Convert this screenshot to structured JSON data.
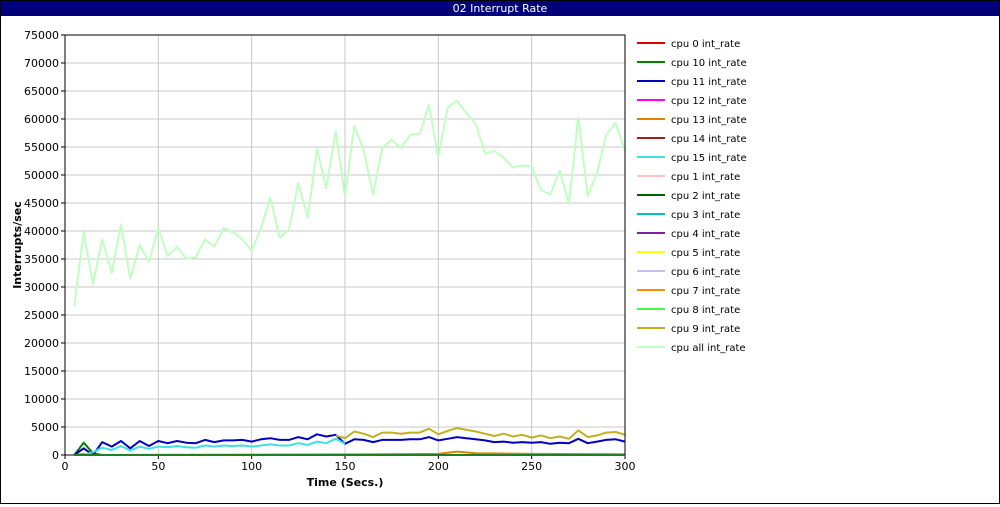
{
  "window": {
    "title": "02 Interrupt Rate"
  },
  "chart_data": {
    "type": "line",
    "title": "02 Interrupt Rate",
    "xlabel": "Time (Secs.)",
    "ylabel": "Interrupts/sec",
    "xlim": [
      0,
      300
    ],
    "ylim": [
      0,
      75000
    ],
    "x_ticks": [
      0,
      50,
      100,
      150,
      200,
      250,
      300
    ],
    "y_ticks": [
      0,
      5000,
      10000,
      15000,
      20000,
      25000,
      30000,
      35000,
      40000,
      45000,
      50000,
      55000,
      60000,
      65000,
      70000,
      75000
    ],
    "grid": true,
    "legend_position": "right",
    "series": [
      {
        "name": "cpu 0 int_rate",
        "color": "#e00000",
        "points": [
          [
            5,
            0
          ],
          [
            10,
            100
          ],
          [
            15,
            0
          ],
          [
            20,
            0
          ],
          [
            25,
            0
          ],
          [
            50,
            0
          ],
          [
            100,
            0
          ],
          [
            150,
            0
          ],
          [
            200,
            0
          ],
          [
            250,
            0
          ],
          [
            300,
            0
          ]
        ]
      },
      {
        "name": "cpu 10 int_rate",
        "color": "#008000",
        "points": [
          [
            5,
            0
          ],
          [
            10,
            2200
          ],
          [
            15,
            300
          ],
          [
            20,
            0
          ],
          [
            25,
            0
          ],
          [
            300,
            0
          ]
        ]
      },
      {
        "name": "cpu 11 int_rate",
        "color": "#0000c0",
        "points": [
          [
            5,
            0
          ],
          [
            10,
            1200
          ],
          [
            15,
            0
          ],
          [
            20,
            2300
          ],
          [
            25,
            1500
          ],
          [
            30,
            2500
          ],
          [
            35,
            1200
          ],
          [
            40,
            2500
          ],
          [
            45,
            1600
          ],
          [
            50,
            2500
          ],
          [
            55,
            2100
          ],
          [
            60,
            2500
          ],
          [
            65,
            2200
          ],
          [
            70,
            2100
          ],
          [
            75,
            2700
          ],
          [
            80,
            2300
          ],
          [
            85,
            2600
          ],
          [
            90,
            2600
          ],
          [
            95,
            2700
          ],
          [
            100,
            2400
          ],
          [
            105,
            2800
          ],
          [
            110,
            3000
          ],
          [
            115,
            2700
          ],
          [
            120,
            2700
          ],
          [
            125,
            3200
          ],
          [
            130,
            2800
          ],
          [
            135,
            3700
          ],
          [
            140,
            3300
          ],
          [
            145,
            3600
          ],
          [
            150,
            2000
          ],
          [
            155,
            2800
          ],
          [
            160,
            2700
          ],
          [
            165,
            2300
          ],
          [
            170,
            2700
          ],
          [
            175,
            2700
          ],
          [
            180,
            2700
          ],
          [
            185,
            2800
          ],
          [
            190,
            2800
          ],
          [
            195,
            3200
          ],
          [
            200,
            2600
          ],
          [
            205,
            2900
          ],
          [
            210,
            3200
          ],
          [
            215,
            3000
          ],
          [
            220,
            2800
          ],
          [
            225,
            2600
          ],
          [
            230,
            2300
          ],
          [
            235,
            2400
          ],
          [
            240,
            2200
          ],
          [
            245,
            2300
          ],
          [
            250,
            2200
          ],
          [
            255,
            2300
          ],
          [
            260,
            2000
          ],
          [
            265,
            2200
          ],
          [
            270,
            2100
          ],
          [
            275,
            2900
          ],
          [
            280,
            2100
          ],
          [
            285,
            2400
          ],
          [
            290,
            2700
          ],
          [
            295,
            2800
          ],
          [
            300,
            2400
          ]
        ]
      },
      {
        "name": "cpu 12 int_rate",
        "color": "#ff00ff",
        "points": [
          [
            5,
            0
          ],
          [
            300,
            0
          ]
        ]
      },
      {
        "name": "cpu 13 int_rate",
        "color": "#e08000",
        "points": [
          [
            5,
            0
          ],
          [
            150,
            100
          ],
          [
            200,
            200
          ],
          [
            210,
            600
          ],
          [
            220,
            300
          ],
          [
            250,
            200
          ],
          [
            300,
            150
          ]
        ]
      },
      {
        "name": "cpu 14 int_rate",
        "color": "#a02020",
        "points": [
          [
            5,
            0
          ],
          [
            300,
            0
          ]
        ]
      },
      {
        "name": "cpu 15 int_rate",
        "color": "#40e0e0",
        "points": [
          [
            5,
            0
          ],
          [
            10,
            0
          ],
          [
            15,
            500
          ],
          [
            20,
            1300
          ],
          [
            25,
            900
          ],
          [
            30,
            1600
          ],
          [
            35,
            800
          ],
          [
            40,
            1500
          ],
          [
            45,
            1100
          ],
          [
            50,
            1500
          ],
          [
            55,
            1400
          ],
          [
            60,
            1600
          ],
          [
            65,
            1400
          ],
          [
            70,
            1300
          ],
          [
            75,
            1700
          ],
          [
            80,
            1500
          ],
          [
            85,
            1700
          ],
          [
            90,
            1600
          ],
          [
            95,
            1700
          ],
          [
            100,
            1500
          ],
          [
            105,
            1700
          ],
          [
            110,
            1900
          ],
          [
            115,
            1700
          ],
          [
            120,
            1700
          ],
          [
            125,
            2100
          ],
          [
            130,
            1800
          ],
          [
            135,
            2400
          ],
          [
            140,
            2100
          ],
          [
            145,
            2900
          ],
          [
            150,
            2000
          ]
        ]
      },
      {
        "name": "cpu 1 int_rate",
        "color": "#ffc0c0",
        "points": [
          [
            5,
            0
          ],
          [
            300,
            0
          ]
        ]
      },
      {
        "name": "cpu 2 int_rate",
        "color": "#006000",
        "points": [
          [
            5,
            0
          ],
          [
            300,
            0
          ]
        ]
      },
      {
        "name": "cpu 3 int_rate",
        "color": "#00c0c0",
        "points": [
          [
            5,
            0
          ],
          [
            300,
            0
          ]
        ]
      },
      {
        "name": "cpu 4 int_rate",
        "color": "#8020a0",
        "points": [
          [
            5,
            0
          ],
          [
            300,
            0
          ]
        ]
      },
      {
        "name": "cpu 5 int_rate",
        "color": "#ffff00",
        "points": [
          [
            5,
            0
          ],
          [
            300,
            0
          ]
        ]
      },
      {
        "name": "cpu 6 int_rate",
        "color": "#c0c0ff",
        "points": [
          [
            5,
            0
          ],
          [
            300,
            0
          ]
        ]
      },
      {
        "name": "cpu 7 int_rate",
        "color": "#ff8c00",
        "points": [
          [
            5,
            0
          ],
          [
            300,
            0
          ]
        ]
      },
      {
        "name": "cpu 8 int_rate",
        "color": "#40ff40",
        "points": [
          [
            5,
            0
          ],
          [
            300,
            0
          ]
        ]
      },
      {
        "name": "cpu 9 int_rate",
        "color": "#c0b020",
        "points": [
          [
            145,
            3500
          ],
          [
            150,
            3000
          ],
          [
            155,
            4200
          ],
          [
            160,
            3800
          ],
          [
            165,
            3200
          ],
          [
            170,
            4000
          ],
          [
            175,
            4000
          ],
          [
            180,
            3800
          ],
          [
            185,
            4000
          ],
          [
            190,
            4000
          ],
          [
            195,
            4700
          ],
          [
            200,
            3700
          ],
          [
            205,
            4300
          ],
          [
            210,
            4800
          ],
          [
            215,
            4500
          ],
          [
            220,
            4200
          ],
          [
            225,
            3800
          ],
          [
            230,
            3400
          ],
          [
            235,
            3800
          ],
          [
            240,
            3300
          ],
          [
            245,
            3600
          ],
          [
            250,
            3100
          ],
          [
            255,
            3500
          ],
          [
            260,
            3000
          ],
          [
            265,
            3300
          ],
          [
            270,
            2900
          ],
          [
            275,
            4400
          ],
          [
            280,
            3200
          ],
          [
            285,
            3500
          ],
          [
            290,
            4000
          ],
          [
            295,
            4100
          ],
          [
            300,
            3600
          ]
        ]
      },
      {
        "name": "cpu all int_rate",
        "color": "#c0ffc0",
        "points": [
          [
            5,
            26500
          ],
          [
            10,
            39800
          ],
          [
            15,
            30500
          ],
          [
            20,
            38500
          ],
          [
            25,
            32500
          ],
          [
            30,
            41200
          ],
          [
            35,
            31500
          ],
          [
            40,
            37500
          ],
          [
            45,
            34500
          ],
          [
            50,
            40500
          ],
          [
            55,
            35500
          ],
          [
            60,
            37200
          ],
          [
            65,
            35000
          ],
          [
            70,
            35300
          ],
          [
            75,
            38500
          ],
          [
            80,
            37200
          ],
          [
            85,
            40500
          ],
          [
            90,
            39800
          ],
          [
            95,
            38500
          ],
          [
            100,
            36500
          ],
          [
            105,
            40500
          ],
          [
            110,
            46000
          ],
          [
            115,
            38800
          ],
          [
            120,
            40300
          ],
          [
            125,
            48600
          ],
          [
            130,
            42300
          ],
          [
            135,
            54700
          ],
          [
            140,
            47600
          ],
          [
            145,
            57800
          ],
          [
            150,
            46200
          ],
          [
            155,
            58700
          ],
          [
            160,
            54500
          ],
          [
            165,
            46500
          ],
          [
            170,
            54800
          ],
          [
            175,
            56300
          ],
          [
            180,
            54800
          ],
          [
            185,
            57200
          ],
          [
            190,
            57300
          ],
          [
            195,
            62500
          ],
          [
            200,
            53200
          ],
          [
            205,
            62000
          ],
          [
            210,
            63300
          ],
          [
            215,
            61000
          ],
          [
            220,
            59200
          ],
          [
            225,
            53800
          ],
          [
            230,
            54300
          ],
          [
            235,
            53100
          ],
          [
            240,
            51300
          ],
          [
            245,
            51700
          ],
          [
            250,
            51500
          ],
          [
            255,
            47300
          ],
          [
            260,
            46500
          ],
          [
            265,
            50800
          ],
          [
            270,
            44800
          ],
          [
            275,
            60300
          ],
          [
            280,
            46300
          ],
          [
            285,
            50300
          ],
          [
            290,
            57200
          ],
          [
            295,
            59300
          ],
          [
            300,
            54300
          ]
        ]
      }
    ]
  }
}
